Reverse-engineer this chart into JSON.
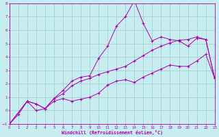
{
  "xlabel": "Windchill (Refroidissement éolien,°C)",
  "bg_color": "#c8edf0",
  "line_color": "#aa00aa",
  "grid_color": "#99cccc",
  "xlim": [
    0,
    23
  ],
  "ylim": [
    -1,
    8
  ],
  "xtick_labels": [
    "0",
    "1",
    "2",
    "3",
    "4",
    "5",
    "6",
    "7",
    "8",
    "9",
    "10",
    "11",
    "12",
    "13",
    "14",
    "15",
    "16",
    "17",
    "18",
    "19",
    "20",
    "21",
    "22",
    "23"
  ],
  "yticks": [
    -1,
    0,
    1,
    2,
    3,
    4,
    5,
    6,
    7,
    8
  ],
  "line1_x": [
    0,
    1,
    2,
    3,
    4,
    5,
    6,
    7,
    8,
    9,
    10,
    11,
    12,
    13,
    14,
    15,
    16,
    17,
    18,
    19,
    20,
    21,
    22,
    23
  ],
  "line1_y": [
    -1.0,
    -0.3,
    0.7,
    0.0,
    0.15,
    0.7,
    0.9,
    0.7,
    0.85,
    1.0,
    1.3,
    1.9,
    2.2,
    2.3,
    2.1,
    2.5,
    2.8,
    3.1,
    3.4,
    3.3,
    3.3,
    3.7,
    4.2,
    2.4
  ],
  "line2_x": [
    0,
    2,
    3,
    4,
    5,
    6,
    7,
    8,
    9,
    10,
    11,
    12,
    13,
    14,
    15,
    16,
    17,
    18,
    19,
    20,
    21,
    22,
    23
  ],
  "line2_y": [
    -1.0,
    0.7,
    0.5,
    0.15,
    0.9,
    1.5,
    2.2,
    2.5,
    2.6,
    3.9,
    4.8,
    6.3,
    7.0,
    8.2,
    6.5,
    5.2,
    5.5,
    5.3,
    5.2,
    4.8,
    5.4,
    5.3,
    2.4
  ],
  "line3_x": [
    0,
    2,
    3,
    4,
    5,
    6,
    7,
    8,
    9,
    10,
    11,
    12,
    13,
    14,
    15,
    16,
    17,
    18,
    19,
    20,
    21,
    22,
    23
  ],
  "line3_y": [
    -1.0,
    0.7,
    0.5,
    0.15,
    0.9,
    1.25,
    1.85,
    2.2,
    2.4,
    2.7,
    2.9,
    3.1,
    3.3,
    3.7,
    4.1,
    4.5,
    4.8,
    5.05,
    5.25,
    5.3,
    5.5,
    5.3,
    2.4
  ]
}
